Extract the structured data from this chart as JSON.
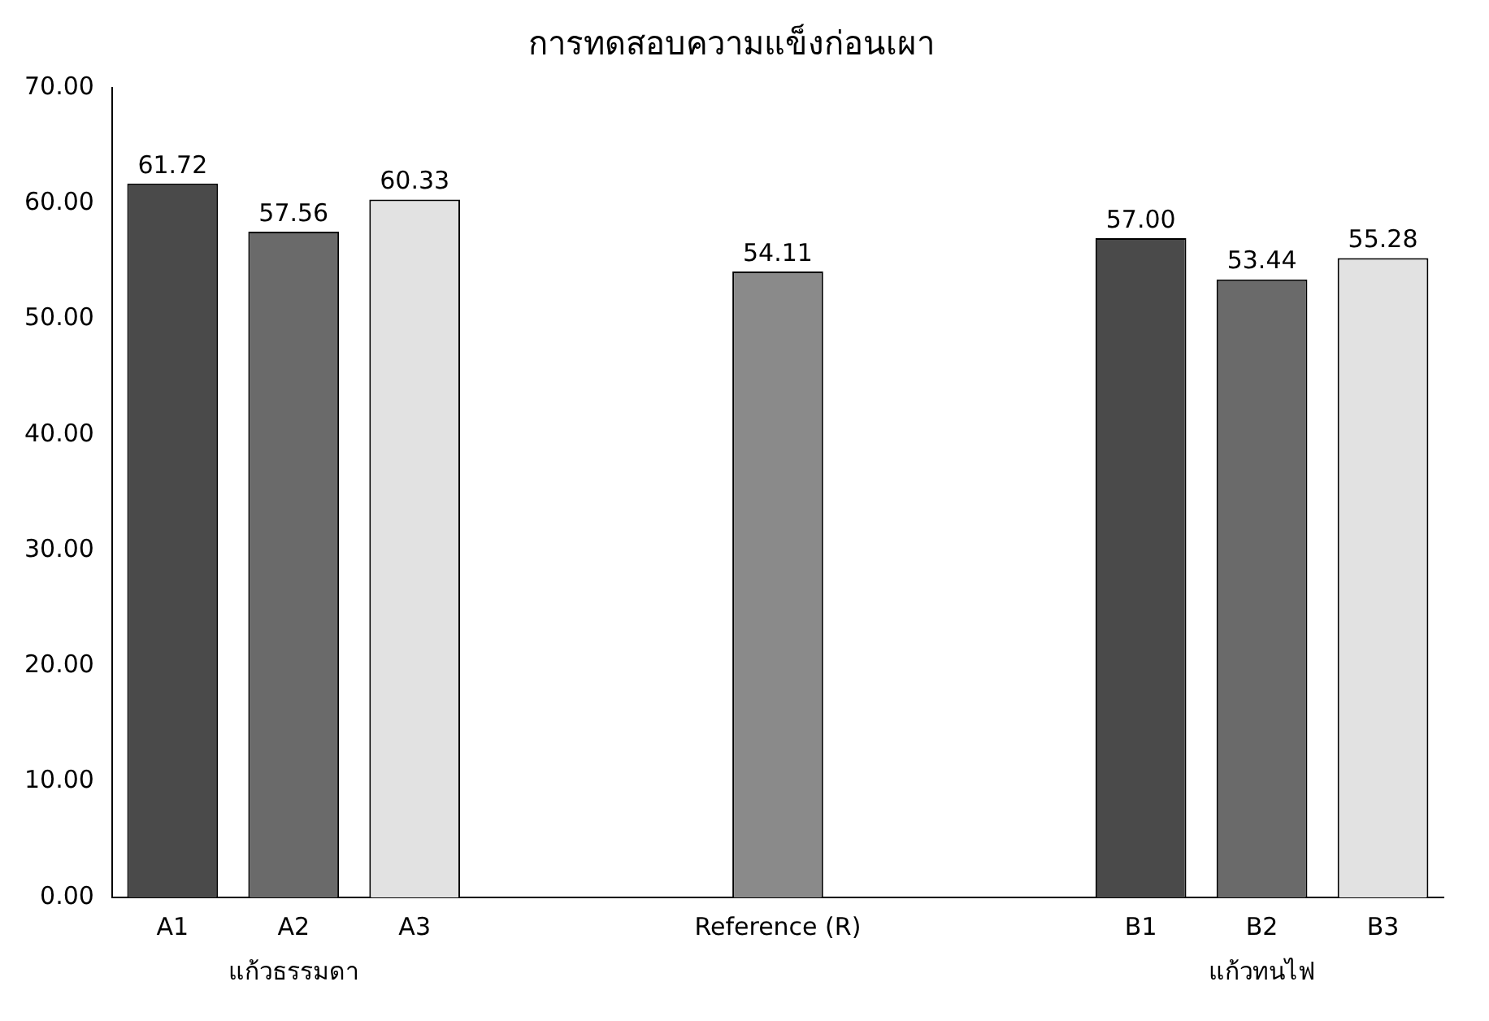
{
  "chart_data": {
    "type": "bar",
    "title": "การทดสอบความแข็งก่อนเผา",
    "categories": [
      "A1",
      "A2",
      "A3",
      null,
      null,
      "Reference (R)",
      null,
      null,
      "B1",
      "B2",
      "B3"
    ],
    "values": [
      61.72,
      57.56,
      60.33,
      null,
      null,
      54.11,
      null,
      null,
      57.0,
      53.44,
      55.28
    ],
    "value_labels": [
      "61.72",
      "57.56",
      "60.33",
      null,
      null,
      "54.11",
      null,
      null,
      "57.00",
      "53.44",
      "55.28"
    ],
    "colors": [
      "#4a4a4a",
      "#6a6a6a",
      "#e2e2e2",
      null,
      null,
      "#8a8a8a",
      null,
      null,
      "#4a4a4a",
      "#6a6a6a",
      "#e2e2e2"
    ],
    "ylim": [
      0,
      70
    ],
    "yticks": [
      {
        "value": 0,
        "label": "0.00"
      },
      {
        "value": 10,
        "label": "10.00"
      },
      {
        "value": 20,
        "label": "20.00"
      },
      {
        "value": 30,
        "label": "30.00"
      },
      {
        "value": 40,
        "label": "40.00"
      },
      {
        "value": 50,
        "label": "50.00"
      },
      {
        "value": 60,
        "label": "60.00"
      },
      {
        "value": 70,
        "label": "70.00"
      }
    ],
    "grid": false,
    "legend": false,
    "annotations": [
      "แก้วธรรมดา",
      "แก้วทนไฟ"
    ]
  }
}
